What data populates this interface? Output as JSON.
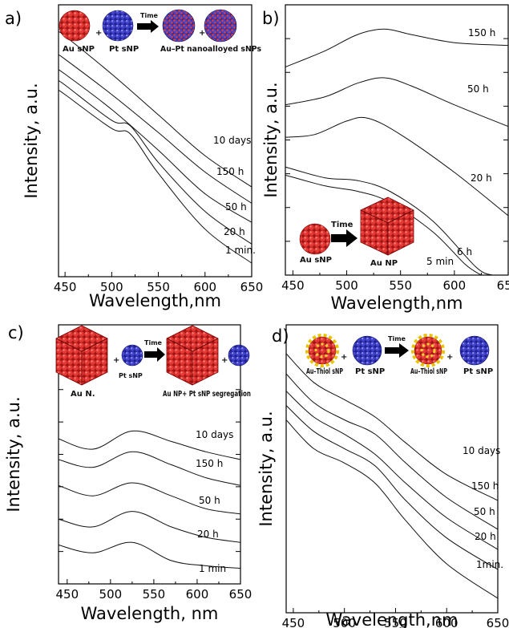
{
  "chart_data": [
    {
      "panel": "a)",
      "type": "line",
      "xlabel": "Wavelength,nm",
      "ylabel": "Intensity, a.u.",
      "xlim": [
        443,
        650
      ],
      "xticks": [
        450,
        500,
        550,
        600,
        650
      ],
      "schematic": {
        "labels": [
          "Au sNP",
          "Pt sNP",
          "Time",
          "Au–Pt nanoalloyed sNPs"
        ],
        "symbols": [
          "+",
          "+"
        ]
      },
      "series": [
        {
          "name": "10 days",
          "x": [
            443,
            450,
            500,
            550,
            600,
            650
          ],
          "y": [
            9.0,
            8.85,
            7.45,
            5.95,
            4.45,
            3.3
          ]
        },
        {
          "name": "150 h",
          "x": [
            443,
            450,
            500,
            550,
            600,
            650
          ],
          "y": [
            8.15,
            8.0,
            6.7,
            5.3,
            3.85,
            2.7
          ]
        },
        {
          "name": "50 h",
          "x": [
            443,
            450,
            500,
            550,
            600,
            650
          ],
          "y": [
            7.6,
            7.45,
            6.15,
            4.65,
            3.05,
            2.0
          ]
        },
        {
          "name": "20 h",
          "x": [
            443,
            450,
            500,
            520,
            550,
            600,
            650
          ],
          "y": [
            7.2,
            7.05,
            5.75,
            5.55,
            4.2,
            2.4,
            1.2
          ]
        },
        {
          "name": "1 min.",
          "x": [
            443,
            450,
            500,
            520,
            550,
            600,
            650
          ],
          "y": [
            6.85,
            6.7,
            5.45,
            5.25,
            3.8,
            1.75,
            0.5
          ]
        }
      ]
    },
    {
      "panel": "b)",
      "type": "line",
      "xlabel": "Wavelength,nm",
      "ylabel": "Intensity, a.u.",
      "xlim": [
        443,
        650
      ],
      "xticks": [
        450,
        500,
        550,
        600,
        650
      ],
      "schematic": {
        "labels": [
          "Au sNP",
          "Time",
          "Au NP"
        ]
      },
      "series": [
        {
          "name": "150 h",
          "x": [
            443,
            480,
            510,
            535,
            560,
            600,
            650
          ],
          "y": [
            7.7,
            8.3,
            8.9,
            9.1,
            8.9,
            8.6,
            8.5
          ]
        },
        {
          "name": "50 h",
          "x": [
            443,
            480,
            510,
            535,
            560,
            600,
            650
          ],
          "y": [
            6.3,
            6.6,
            7.1,
            7.3,
            7.0,
            6.3,
            5.5
          ]
        },
        {
          "name": "20 h",
          "x": [
            443,
            470,
            500,
            520,
            550,
            600,
            650
          ],
          "y": [
            5.1,
            5.2,
            5.7,
            5.8,
            5.2,
            3.8,
            2.2
          ]
        },
        {
          "name": "6 h",
          "x": [
            443,
            480,
            510,
            540,
            580,
            620,
            635
          ],
          "y": [
            4.0,
            3.6,
            3.5,
            3.1,
            2.0,
            0.3,
            0.0
          ]
        },
        {
          "name": "5 min",
          "x": [
            443,
            480,
            510,
            540,
            580,
            610,
            625
          ],
          "y": [
            3.7,
            3.3,
            3.1,
            2.7,
            1.6,
            0.4,
            0.0
          ]
        }
      ]
    },
    {
      "panel": "c)",
      "type": "line",
      "xlabel": "Wavelength, nm",
      "ylabel": "Intensity, a.u.",
      "xlim": [
        440,
        650
      ],
      "xticks": [
        450,
        500,
        550,
        600,
        650
      ],
      "schematic": {
        "labels": [
          "Au N.",
          "Pt sNP",
          "Time",
          "Au NP+ Pt sNP segregation"
        ],
        "symbols": [
          "+",
          "+"
        ]
      },
      "series": [
        {
          "name": "10 days",
          "x": [
            440,
            480,
            525,
            570,
            610,
            650
          ],
          "y": [
            5.6,
            5.2,
            5.9,
            5.5,
            5.1,
            4.8
          ]
        },
        {
          "name": "150 h",
          "x": [
            440,
            480,
            525,
            570,
            610,
            650
          ],
          "y": [
            4.8,
            4.5,
            5.1,
            4.6,
            4.1,
            3.8
          ]
        },
        {
          "name": "50 h",
          "x": [
            440,
            480,
            525,
            570,
            610,
            650
          ],
          "y": [
            3.8,
            3.4,
            3.9,
            3.4,
            2.9,
            2.7
          ]
        },
        {
          "name": "20 h",
          "x": [
            440,
            480,
            525,
            570,
            610,
            650
          ],
          "y": [
            2.5,
            2.2,
            2.8,
            2.2,
            1.8,
            1.6
          ]
        },
        {
          "name": "1 min",
          "x": [
            440,
            480,
            525,
            570,
            610,
            650
          ],
          "y": [
            1.5,
            1.2,
            1.6,
            0.9,
            0.7,
            0.6
          ]
        }
      ]
    },
    {
      "panel": "d)",
      "type": "line",
      "xlabel": "Wavelength,nm",
      "ylabel": "Intensity, a.u.",
      "xlim": [
        443,
        650
      ],
      "xticks": [
        450,
        500,
        550,
        600,
        650
      ],
      "schematic": {
        "labels": [
          "Au–Thiol sNP",
          "Pt sNP",
          "Time",
          "Au–Thiol sNP",
          "Pt sNP"
        ],
        "symbols": [
          "+",
          "+"
        ]
      },
      "series": [
        {
          "name": "10 days",
          "x": [
            443,
            470,
            500,
            530,
            560,
            600,
            650
          ],
          "y": [
            9.0,
            8.0,
            7.4,
            6.8,
            5.9,
            4.8,
            3.9
          ]
        },
        {
          "name": "150 h",
          "x": [
            443,
            470,
            500,
            530,
            560,
            600,
            650
          ],
          "y": [
            8.3,
            7.3,
            6.7,
            6.2,
            5.2,
            4.0,
            2.9
          ]
        },
        {
          "name": "50 h",
          "x": [
            443,
            470,
            500,
            530,
            560,
            600,
            650
          ],
          "y": [
            7.7,
            6.8,
            6.2,
            5.5,
            4.5,
            3.3,
            2.2
          ]
        },
        {
          "name": "20 h",
          "x": [
            443,
            470,
            500,
            530,
            560,
            600,
            650
          ],
          "y": [
            7.2,
            6.3,
            5.7,
            5.1,
            3.9,
            2.6,
            1.5
          ]
        },
        {
          "name": "1min.",
          "x": [
            443,
            470,
            500,
            530,
            560,
            600,
            650
          ],
          "y": [
            6.7,
            5.7,
            5.2,
            4.5,
            3.2,
            1.7,
            0.5
          ]
        }
      ]
    }
  ]
}
